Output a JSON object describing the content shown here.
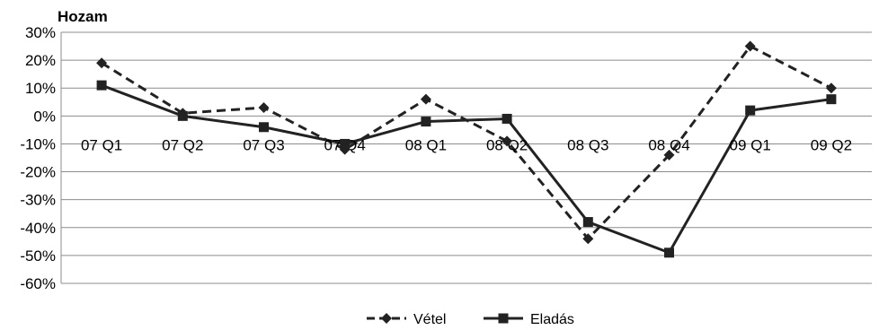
{
  "chart_data": {
    "type": "line",
    "title": "",
    "ylabel": "Hozam",
    "xlabel": "",
    "categories": [
      "07 Q1",
      "07 Q2",
      "07 Q3",
      "07 Q4",
      "08 Q1",
      "08 Q2",
      "08 Q3",
      "08 Q4",
      "09 Q1",
      "09 Q2"
    ],
    "ylim": [
      -60,
      30
    ],
    "ytick_step": 10,
    "ytick_suffix": "%",
    "grid": true,
    "legend_position": "bottom-center",
    "series": [
      {
        "name": "Vétel",
        "values": [
          19,
          1,
          3,
          -12,
          6,
          -9,
          -44,
          -14,
          25,
          10
        ],
        "style": "dashed",
        "marker": "diamond",
        "color": "#222222"
      },
      {
        "name": "Eladás",
        "values": [
          11,
          0,
          -4,
          -10,
          -2,
          -1,
          -38,
          -49,
          2,
          6
        ],
        "style": "solid",
        "marker": "square",
        "color": "#222222"
      }
    ]
  }
}
